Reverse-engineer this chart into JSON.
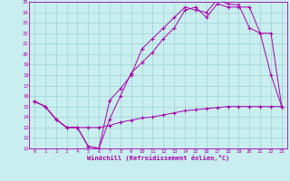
{
  "xlabel": "Windchill (Refroidissement éolien,°C)",
  "background_color": "#c8eef0",
  "grid_color": "#a0d0d0",
  "line_color": "#aa00aa",
  "xlim": [
    -0.5,
    23.5
  ],
  "ylim": [
    11,
    25
  ],
  "xticks": [
    0,
    1,
    2,
    3,
    4,
    5,
    6,
    7,
    8,
    9,
    10,
    11,
    12,
    13,
    14,
    15,
    16,
    17,
    18,
    19,
    20,
    21,
    22,
    23
  ],
  "yticks": [
    11,
    12,
    13,
    14,
    15,
    16,
    17,
    18,
    19,
    20,
    21,
    22,
    23,
    24,
    25
  ],
  "line1_x": [
    0,
    1,
    2,
    3,
    4,
    5,
    6,
    7,
    8,
    9,
    10,
    11,
    12,
    13,
    14,
    15,
    16,
    17,
    18,
    19,
    20,
    21,
    22,
    23
  ],
  "line1_y": [
    15.5,
    15.0,
    13.8,
    13.0,
    13.0,
    11.2,
    11.0,
    15.6,
    16.7,
    18.0,
    20.5,
    21.5,
    22.5,
    23.5,
    24.5,
    24.2,
    24.0,
    25.2,
    24.8,
    24.7,
    22.5,
    22.0,
    18.0,
    15.0
  ],
  "line2_x": [
    0,
    1,
    2,
    3,
    4,
    5,
    6,
    7,
    8,
    9,
    10,
    11,
    12,
    13,
    14,
    15,
    16,
    17,
    18,
    19,
    20,
    21,
    22,
    23
  ],
  "line2_y": [
    15.5,
    15.0,
    13.8,
    13.0,
    13.0,
    11.2,
    11.0,
    13.8,
    16.0,
    18.2,
    19.2,
    20.2,
    21.5,
    22.5,
    24.2,
    24.5,
    23.5,
    24.8,
    24.5,
    24.5,
    24.5,
    22.0,
    22.0,
    15.0
  ],
  "line3_x": [
    0,
    1,
    2,
    3,
    4,
    5,
    6,
    7,
    8,
    9,
    10,
    11,
    12,
    13,
    14,
    15,
    16,
    17,
    18,
    19,
    20,
    21,
    22,
    23
  ],
  "line3_y": [
    15.5,
    15.0,
    13.8,
    13.0,
    13.0,
    13.0,
    13.0,
    13.2,
    13.5,
    13.7,
    13.9,
    14.0,
    14.2,
    14.4,
    14.6,
    14.7,
    14.8,
    14.9,
    15.0,
    15.0,
    15.0,
    15.0,
    15.0,
    15.0
  ]
}
